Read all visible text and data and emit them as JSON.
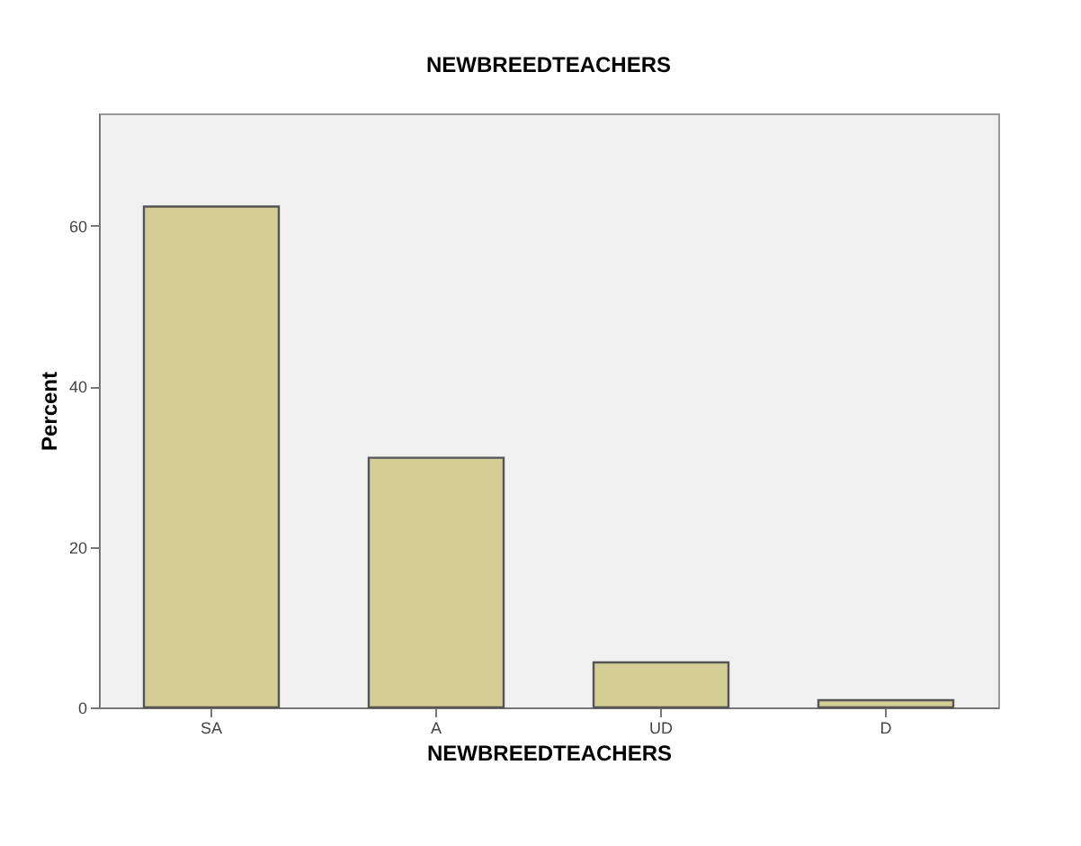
{
  "chart_data": {
    "type": "bar",
    "title": "NEWBREEDTEACHERS",
    "xlabel": "NEWBREEDTEACHERS",
    "ylabel": "Percent",
    "categories": [
      "SA",
      "A",
      "UD",
      "D"
    ],
    "values": [
      62.4,
      31.1,
      5.6,
      0.9
    ],
    "color": "#d3ce96",
    "ylim": [
      0,
      74
    ],
    "yticks": [
      0,
      20,
      40,
      60
    ],
    "grid": false
  }
}
